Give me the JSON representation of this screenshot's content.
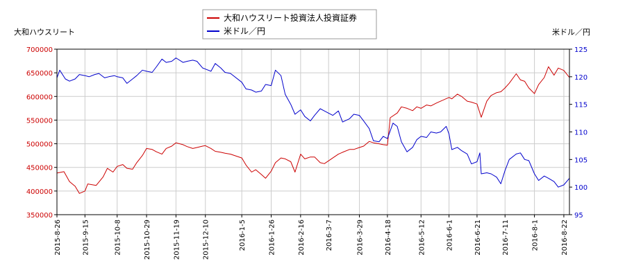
{
  "chart_data": {
    "type": "line",
    "y_left_label": "大和ハウスリート",
    "y_right_label": "米ドル／円",
    "y_left_ticks": [
      "350000",
      "400000",
      "450000",
      "500000",
      "550000",
      "600000",
      "650000",
      "700000"
    ],
    "y_right_ticks": [
      "95",
      "100",
      "105",
      "110",
      "115",
      "120",
      "125"
    ],
    "y_left_lim": [
      350000,
      700000
    ],
    "y_right_lim": [
      95,
      125
    ],
    "x_ticks": [
      "2015-8-26",
      "2015-9-15",
      "2015-10-8",
      "2015-10-29",
      "2015-11-19",
      "2015-12-10",
      "2016-1-5",
      "2016-1-26",
      "2016-2-16",
      "2016-3-7",
      "2016-3-29",
      "2016-4-18",
      "2016-5-12",
      "2016-6-1",
      "2016-6-21",
      "2016-7-11",
      "2016-8-1",
      "2016-8-22"
    ],
    "x_range": [
      "2015-08-26",
      "2016-08-26"
    ],
    "grid": true,
    "legend_position": "top-center",
    "colors": {
      "left": "#cc0000",
      "right": "#0000cc"
    },
    "series": [
      {
        "name": "大和ハウスリート投資法人投資証券",
        "axis": "left",
        "color": "#cc0000",
        "points": [
          [
            "2015-08-26",
            438000
          ],
          [
            "2015-08-31",
            441000
          ],
          [
            "2015-09-04",
            420000
          ],
          [
            "2015-09-08",
            410000
          ],
          [
            "2015-09-11",
            395000
          ],
          [
            "2015-09-15",
            400000
          ],
          [
            "2015-09-17",
            415000
          ],
          [
            "2015-09-23",
            412000
          ],
          [
            "2015-09-28",
            430000
          ],
          [
            "2015-10-01",
            448000
          ],
          [
            "2015-10-05",
            440000
          ],
          [
            "2015-10-08",
            452000
          ],
          [
            "2015-10-12",
            456000
          ],
          [
            "2015-10-15",
            448000
          ],
          [
            "2015-10-19",
            446000
          ],
          [
            "2015-10-22",
            460000
          ],
          [
            "2015-10-26",
            475000
          ],
          [
            "2015-10-29",
            490000
          ],
          [
            "2015-11-02",
            488000
          ],
          [
            "2015-11-05",
            483000
          ],
          [
            "2015-11-09",
            478000
          ],
          [
            "2015-11-12",
            490000
          ],
          [
            "2015-11-16",
            495000
          ],
          [
            "2015-11-19",
            502000
          ],
          [
            "2015-11-24",
            498000
          ],
          [
            "2015-11-27",
            494000
          ],
          [
            "2015-12-01",
            490000
          ],
          [
            "2015-12-04",
            492000
          ],
          [
            "2015-12-08",
            495000
          ],
          [
            "2015-12-10",
            496000
          ],
          [
            "2015-12-14",
            490000
          ],
          [
            "2015-12-17",
            484000
          ],
          [
            "2015-12-21",
            482000
          ],
          [
            "2015-12-24",
            480000
          ],
          [
            "2015-12-28",
            478000
          ],
          [
            "2016-01-05",
            470000
          ],
          [
            "2016-01-08",
            455000
          ],
          [
            "2016-01-12",
            440000
          ],
          [
            "2016-01-15",
            445000
          ],
          [
            "2016-01-19",
            435000
          ],
          [
            "2016-01-22",
            427000
          ],
          [
            "2016-01-26",
            442000
          ],
          [
            "2016-01-29",
            460000
          ],
          [
            "2016-02-02",
            470000
          ],
          [
            "2016-02-05",
            468000
          ],
          [
            "2016-02-09",
            462000
          ],
          [
            "2016-02-12",
            440000
          ],
          [
            "2016-02-16",
            478000
          ],
          [
            "2016-02-19",
            468000
          ],
          [
            "2016-02-23",
            472000
          ],
          [
            "2016-02-26",
            472000
          ],
          [
            "2016-03-01",
            460000
          ],
          [
            "2016-03-04",
            458000
          ],
          [
            "2016-03-07",
            464000
          ],
          [
            "2016-03-10",
            470000
          ],
          [
            "2016-03-14",
            478000
          ],
          [
            "2016-03-17",
            482000
          ],
          [
            "2016-03-22",
            488000
          ],
          [
            "2016-03-25",
            488000
          ],
          [
            "2016-03-29",
            492000
          ],
          [
            "2016-04-01",
            495000
          ],
          [
            "2016-04-05",
            505000
          ],
          [
            "2016-04-08",
            502000
          ],
          [
            "2016-04-12",
            500000
          ],
          [
            "2016-04-15",
            498000
          ],
          [
            "2016-04-18",
            497000
          ],
          [
            "2016-04-20",
            555000
          ],
          [
            "2016-04-25",
            565000
          ],
          [
            "2016-04-28",
            578000
          ],
          [
            "2016-05-02",
            575000
          ],
          [
            "2016-05-06",
            570000
          ],
          [
            "2016-05-09",
            578000
          ],
          [
            "2016-05-12",
            575000
          ],
          [
            "2016-05-16",
            582000
          ],
          [
            "2016-05-19",
            580000
          ],
          [
            "2016-05-23",
            586000
          ],
          [
            "2016-05-26",
            590000
          ],
          [
            "2016-06-01",
            598000
          ],
          [
            "2016-06-03",
            595000
          ],
          [
            "2016-06-07",
            605000
          ],
          [
            "2016-06-10",
            600000
          ],
          [
            "2016-06-14",
            590000
          ],
          [
            "2016-06-17",
            588000
          ],
          [
            "2016-06-21",
            584000
          ],
          [
            "2016-06-24",
            556000
          ],
          [
            "2016-06-28",
            590000
          ],
          [
            "2016-07-01",
            602000
          ],
          [
            "2016-07-05",
            608000
          ],
          [
            "2016-07-08",
            610000
          ],
          [
            "2016-07-11",
            618000
          ],
          [
            "2016-07-14",
            628000
          ],
          [
            "2016-07-19",
            648000
          ],
          [
            "2016-07-22",
            635000
          ],
          [
            "2016-07-25",
            632000
          ],
          [
            "2016-07-28",
            618000
          ],
          [
            "2016-08-01",
            606000
          ],
          [
            "2016-08-04",
            625000
          ],
          [
            "2016-08-08",
            640000
          ],
          [
            "2016-08-11",
            663000
          ],
          [
            "2016-08-15",
            645000
          ],
          [
            "2016-08-18",
            660000
          ],
          [
            "2016-08-22",
            655000
          ],
          [
            "2016-08-26",
            640000
          ]
        ]
      },
      {
        "name": "米ドル／円",
        "axis": "right",
        "color": "#0000cc",
        "points": [
          [
            "2015-08-26",
            119.8
          ],
          [
            "2015-08-28",
            121.2
          ],
          [
            "2015-09-01",
            119.6
          ],
          [
            "2015-09-04",
            119.2
          ],
          [
            "2015-09-08",
            119.6
          ],
          [
            "2015-09-11",
            120.4
          ],
          [
            "2015-09-15",
            120.2
          ],
          [
            "2015-09-18",
            120.0
          ],
          [
            "2015-09-22",
            120.4
          ],
          [
            "2015-09-25",
            120.6
          ],
          [
            "2015-09-29",
            119.8
          ],
          [
            "2015-10-02",
            120.0
          ],
          [
            "2015-10-06",
            120.2
          ],
          [
            "2015-10-08",
            120.0
          ],
          [
            "2015-10-12",
            119.8
          ],
          [
            "2015-10-15",
            118.8
          ],
          [
            "2015-10-19",
            119.6
          ],
          [
            "2015-10-22",
            120.2
          ],
          [
            "2015-10-26",
            121.2
          ],
          [
            "2015-10-29",
            121.0
          ],
          [
            "2015-11-02",
            120.8
          ],
          [
            "2015-11-05",
            121.8
          ],
          [
            "2015-11-09",
            123.2
          ],
          [
            "2015-11-12",
            122.6
          ],
          [
            "2015-11-16",
            122.8
          ],
          [
            "2015-11-19",
            123.4
          ],
          [
            "2015-11-24",
            122.6
          ],
          [
            "2015-11-27",
            122.8
          ],
          [
            "2015-12-01",
            123.0
          ],
          [
            "2015-12-04",
            122.8
          ],
          [
            "2015-12-08",
            121.6
          ],
          [
            "2015-12-10",
            121.4
          ],
          [
            "2015-12-14",
            121.0
          ],
          [
            "2015-12-17",
            122.4
          ],
          [
            "2015-12-21",
            121.6
          ],
          [
            "2015-12-24",
            120.8
          ],
          [
            "2015-12-28",
            120.6
          ],
          [
            "2016-01-05",
            119.0
          ],
          [
            "2016-01-08",
            117.8
          ],
          [
            "2016-01-12",
            117.6
          ],
          [
            "2016-01-15",
            117.2
          ],
          [
            "2016-01-19",
            117.4
          ],
          [
            "2016-01-22",
            118.6
          ],
          [
            "2016-01-26",
            118.4
          ],
          [
            "2016-01-29",
            121.2
          ],
          [
            "2016-02-02",
            120.2
          ],
          [
            "2016-02-05",
            116.8
          ],
          [
            "2016-02-09",
            115.0
          ],
          [
            "2016-02-12",
            113.2
          ],
          [
            "2016-02-16",
            114.0
          ],
          [
            "2016-02-19",
            112.8
          ],
          [
            "2016-02-23",
            112.0
          ],
          [
            "2016-02-26",
            113.0
          ],
          [
            "2016-03-01",
            114.2
          ],
          [
            "2016-03-04",
            113.8
          ],
          [
            "2016-03-07",
            113.4
          ],
          [
            "2016-03-10",
            113.0
          ],
          [
            "2016-03-14",
            113.8
          ],
          [
            "2016-03-17",
            111.8
          ],
          [
            "2016-03-22",
            112.4
          ],
          [
            "2016-03-25",
            113.2
          ],
          [
            "2016-03-29",
            113.0
          ],
          [
            "2016-04-01",
            112.0
          ],
          [
            "2016-04-05",
            110.6
          ],
          [
            "2016-04-08",
            108.4
          ],
          [
            "2016-04-12",
            108.2
          ],
          [
            "2016-04-15",
            109.2
          ],
          [
            "2016-04-18",
            108.8
          ],
          [
            "2016-04-22",
            111.6
          ],
          [
            "2016-04-25",
            111.0
          ],
          [
            "2016-04-28",
            108.2
          ],
          [
            "2016-05-02",
            106.4
          ],
          [
            "2016-05-06",
            107.2
          ],
          [
            "2016-05-09",
            108.6
          ],
          [
            "2016-05-12",
            109.2
          ],
          [
            "2016-05-16",
            109.0
          ],
          [
            "2016-05-19",
            110.0
          ],
          [
            "2016-05-23",
            109.8
          ],
          [
            "2016-05-26",
            110.0
          ],
          [
            "2016-05-30",
            111.0
          ],
          [
            "2016-06-01",
            109.6
          ],
          [
            "2016-06-03",
            106.8
          ],
          [
            "2016-06-07",
            107.2
          ],
          [
            "2016-06-10",
            106.6
          ],
          [
            "2016-06-14",
            106.0
          ],
          [
            "2016-06-17",
            104.2
          ],
          [
            "2016-06-21",
            104.6
          ],
          [
            "2016-06-23",
            106.2
          ],
          [
            "2016-06-24",
            102.4
          ],
          [
            "2016-06-28",
            102.6
          ],
          [
            "2016-07-01",
            102.4
          ],
          [
            "2016-07-05",
            101.8
          ],
          [
            "2016-07-08",
            100.6
          ],
          [
            "2016-07-11",
            103.0
          ],
          [
            "2016-07-14",
            105.0
          ],
          [
            "2016-07-19",
            106.0
          ],
          [
            "2016-07-22",
            106.2
          ],
          [
            "2016-07-25",
            105.0
          ],
          [
            "2016-07-28",
            104.8
          ],
          [
            "2016-08-01",
            102.4
          ],
          [
            "2016-08-04",
            101.2
          ],
          [
            "2016-08-08",
            102.0
          ],
          [
            "2016-08-11",
            101.6
          ],
          [
            "2016-08-15",
            101.0
          ],
          [
            "2016-08-18",
            100.0
          ],
          [
            "2016-08-22",
            100.4
          ],
          [
            "2016-08-26",
            101.6
          ]
        ]
      }
    ]
  }
}
